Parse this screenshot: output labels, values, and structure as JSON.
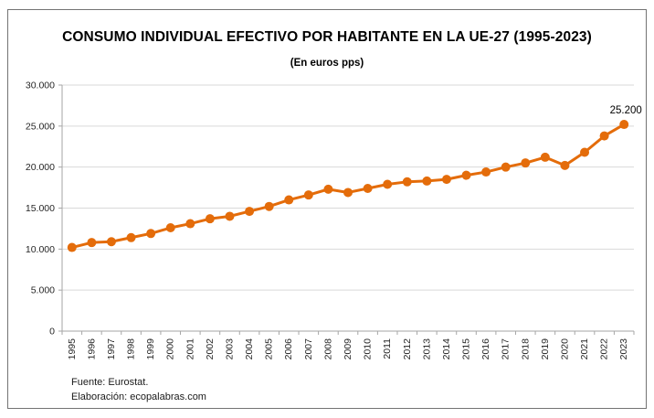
{
  "chart_data": {
    "type": "line",
    "title": "CONSUMO INDIVIDUAL EFECTIVO POR HABITANTE EN LA UE-27 (1995-2023)",
    "subtitle": "(En euros pps)",
    "x": [
      "1995",
      "1996",
      "1997",
      "1998",
      "1999",
      "2000",
      "2001",
      "2002",
      "2003",
      "2004",
      "2005",
      "2006",
      "2007",
      "2008",
      "2009",
      "2010",
      "2011",
      "2012",
      "2013",
      "2014",
      "2015",
      "2016",
      "2017",
      "2018",
      "2019",
      "2020",
      "2021",
      "2022",
      "2023"
    ],
    "values": [
      10200,
      10800,
      10900,
      11400,
      11900,
      12600,
      13100,
      13700,
      14000,
      14600,
      15200,
      16000,
      16600,
      17300,
      16900,
      17400,
      17900,
      18200,
      18300,
      18500,
      19000,
      19400,
      20000,
      20500,
      21200,
      20200,
      21800,
      23800,
      25200
    ],
    "ylim": [
      0,
      30000
    ],
    "yticks": {
      "values": [
        0,
        5000,
        10000,
        15000,
        20000,
        25000,
        30000
      ],
      "labels": [
        "0",
        "5.000",
        "10.000",
        "15.000",
        "20.000",
        "25.000",
        "30.000"
      ]
    },
    "grid": true,
    "legend": "none",
    "last_point_label": "25.200",
    "colors": {
      "accent": "#E46C0A",
      "grid": "#D9D9D9",
      "axis": "#A6A6A6",
      "text": "#262626",
      "frame_border": "#737373"
    }
  },
  "footer": {
    "source": "Fuente: Eurostat.",
    "elaboration": "Elaboración: ecopalabras.com"
  }
}
